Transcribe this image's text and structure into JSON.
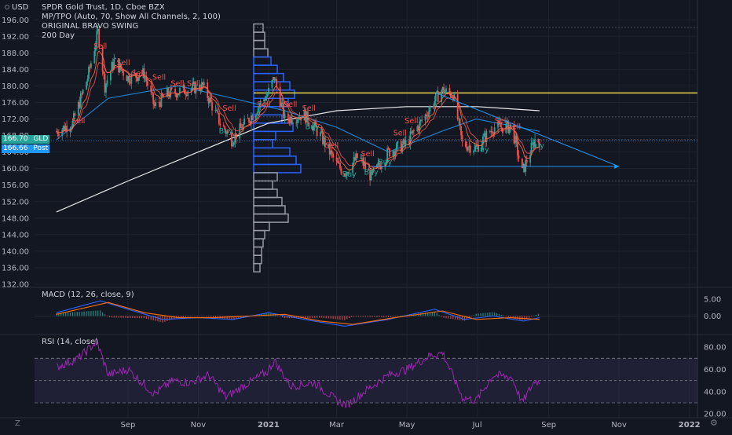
{
  "chart_header": {
    "title": "SPDR Gold Trust, 1D, Cboe BZX",
    "indicator_1": "MP/TPO (Auto, 70, Show All Channels, 2, 100)",
    "indicator_2": "ORIGINAL BRAVO SWING",
    "indicator_3": "200 Day"
  },
  "currency_label": "USD",
  "price_tags": [
    {
      "value": "166.70",
      "label": "GLD"
    },
    {
      "value": "166.66",
      "label": "Post"
    }
  ],
  "macd_label": "MACD (12, 26, close, 9)",
  "rsi_label": "RSI (14, close)",
  "timezone_button": "Z",
  "chart_data": [
    {
      "type": "candlestick",
      "title": "SPDR Gold Trust, 1D, Cboe BZX",
      "ylim": [
        132,
        197
      ],
      "y_ticks": [
        "196.00",
        "192.00",
        "188.00",
        "184.00",
        "180.00",
        "176.00",
        "172.00",
        "168.00",
        "164.00",
        "160.00",
        "156.00",
        "152.00",
        "148.00",
        "144.00",
        "140.00",
        "136.00",
        "132.00"
      ],
      "x_ticks": [
        "Sep",
        "Nov",
        "2021",
        "Mar",
        "May",
        "Jul",
        "Sep",
        "Nov",
        "2022"
      ],
      "price_path": [
        [
          "2020-07-01",
          169
        ],
        [
          "2020-07-15",
          171
        ],
        [
          "2020-07-28",
          182
        ],
        [
          "2020-08-06",
          193
        ],
        [
          "2020-08-12",
          180
        ],
        [
          "2020-08-20",
          186
        ],
        [
          "2020-09-01",
          182
        ],
        [
          "2020-09-15",
          183
        ],
        [
          "2020-09-24",
          175
        ],
        [
          "2020-10-05",
          178
        ],
        [
          "2020-10-20",
          179
        ],
        [
          "2020-11-05",
          180
        ],
        [
          "2020-11-20",
          171
        ],
        [
          "2020-11-30",
          167
        ],
        [
          "2020-12-15",
          172
        ],
        [
          "2020-12-31",
          178
        ],
        [
          "2021-01-06",
          182
        ],
        [
          "2021-01-15",
          172
        ],
        [
          "2021-02-01",
          173
        ],
        [
          "2021-02-15",
          168
        ],
        [
          "2021-03-01",
          161
        ],
        [
          "2021-03-08",
          159
        ],
        [
          "2021-03-20",
          163
        ],
        [
          "2021-03-31",
          158
        ],
        [
          "2021-04-15",
          164
        ],
        [
          "2021-04-30",
          166
        ],
        [
          "2021-05-15",
          172
        ],
        [
          "2021-05-31",
          179
        ],
        [
          "2021-06-10",
          178
        ],
        [
          "2021-06-18",
          166
        ],
        [
          "2021-06-30",
          165
        ],
        [
          "2021-07-15",
          170
        ],
        [
          "2021-07-31",
          170
        ],
        [
          "2021-08-09",
          159
        ],
        [
          "2021-08-20",
          167
        ],
        [
          "2021-08-24",
          166.7
        ]
      ],
      "signals": [
        {
          "label": "Sell",
          "date": "2020-07-20",
          "price": 171
        },
        {
          "label": "Sell",
          "date": "2020-08-08",
          "price": 189
        },
        {
          "label": "Sell",
          "date": "2020-08-28",
          "price": 185
        },
        {
          "label": "Sell",
          "date": "2020-09-10",
          "price": 182.5
        },
        {
          "label": "Sell",
          "date": "2020-09-28",
          "price": 181.5
        },
        {
          "label": "Sell",
          "date": "2020-10-14",
          "price": 180
        },
        {
          "label": "Sell",
          "date": "2020-10-28",
          "price": 180
        },
        {
          "label": "Sell",
          "date": "2020-11-28",
          "price": 174
        },
        {
          "label": "Buy",
          "date": "2020-11-25",
          "price": 168.5
        },
        {
          "label": "Sell",
          "date": "2020-12-28",
          "price": 175
        },
        {
          "label": "Sell",
          "date": "2021-01-20",
          "price": 175
        },
        {
          "label": "Sell",
          "date": "2021-02-05",
          "price": 174
        },
        {
          "label": "Buy",
          "date": "2021-02-08",
          "price": 169.5
        },
        {
          "label": "Sell",
          "date": "2021-02-25",
          "price": 165
        },
        {
          "label": "Buy",
          "date": "2021-03-12",
          "price": 158
        },
        {
          "label": "Sell",
          "date": "2021-03-28",
          "price": 163
        },
        {
          "label": "Buy",
          "date": "2021-03-31",
          "price": 158.5
        },
        {
          "label": "Buy",
          "date": "2021-04-12",
          "price": 161
        },
        {
          "label": "Sell",
          "date": "2021-04-25",
          "price": 168
        },
        {
          "label": "Sell",
          "date": "2021-05-05",
          "price": 171
        },
        {
          "label": "Buy",
          "date": "2021-07-05",
          "price": 164
        },
        {
          "label": "Sell",
          "date": "2021-07-22",
          "price": 171
        },
        {
          "label": "Sell",
          "date": "2021-08-02",
          "price": 169.5
        },
        {
          "label": "Buy",
          "date": "2021-08-22",
          "price": 165
        }
      ],
      "horizontal_line": {
        "price": 178.3,
        "color": "#e8d44d"
      },
      "trendlines": [
        {
          "from": [
            "2021-05-26",
            178.3
          ],
          "to": [
            "2021-11-01",
            160.5
          ]
        },
        {
          "from": [
            "2021-03-31",
            160.5
          ],
          "to": [
            "2021-11-01",
            160.5
          ]
        }
      ],
      "volume_profile": {
        "prices": [
          194,
          192,
          190,
          188,
          186,
          184,
          182,
          180,
          178,
          176,
          174,
          172,
          170,
          168,
          166,
          164,
          162,
          160,
          158,
          156,
          154,
          152,
          150,
          148,
          146,
          144,
          142,
          140,
          138,
          136
        ],
        "volumes": [
          12,
          14,
          14,
          18,
          22,
          30,
          38,
          46,
          52,
          44,
          38,
          36,
          50,
          28,
          24,
          46,
          54,
          60,
          30,
          24,
          30,
          36,
          40,
          44,
          20,
          14,
          12,
          10,
          10,
          8
        ],
        "highlighted_range": [
          160,
          186
        ],
        "colors": {
          "normal": "#9598a1",
          "highlight": "#2962ff"
        }
      },
      "moving_averages": [
        {
          "color": "#ffffff",
          "points": [
            [
              "2020-07-01",
              149.5
            ],
            [
              "2020-09-01",
              157
            ],
            [
              "2020-11-01",
              164
            ],
            [
              "2021-01-01",
              171
            ],
            [
              "2021-03-01",
              174
            ],
            [
              "2021-05-01",
              175
            ],
            [
              "2021-07-01",
              175
            ],
            [
              "2021-08-24",
              174
            ]
          ]
        },
        {
          "color": "#2196f3",
          "points": [
            [
              "2020-07-01",
              167
            ],
            [
              "2020-08-15",
              177
            ],
            [
              "2020-10-15",
              180
            ],
            [
              "2020-12-01",
              177
            ],
            [
              "2021-01-15",
              174
            ],
            [
              "2021-03-01",
              170
            ],
            [
              "2021-04-15",
              164
            ],
            [
              "2021-05-31",
              169
            ],
            [
              "2021-06-30",
              172
            ],
            [
              "2021-08-24",
              169
            ]
          ]
        }
      ]
    },
    {
      "type": "line",
      "title": "MACD (12, 26, close, 9)",
      "y_ticks": [
        "5.00",
        "0.00"
      ],
      "ylim": [
        -5,
        8
      ],
      "series": [
        {
          "color": "#2962ff",
          "points": [
            [
              "2020-07-01",
              1
            ],
            [
              "2020-08-08",
              4.5
            ],
            [
              "2020-09-01",
              2
            ],
            [
              "2020-10-01",
              -1
            ],
            [
              "2020-11-01",
              -0.5
            ],
            [
              "2020-12-01",
              -1
            ],
            [
              "2021-01-01",
              1
            ],
            [
              "2021-02-01",
              -1
            ],
            [
              "2021-03-08",
              -3
            ],
            [
              "2021-04-15",
              -1
            ],
            [
              "2021-05-25",
              2
            ],
            [
              "2021-06-20",
              -1
            ],
            [
              "2021-07-15",
              0
            ],
            [
              "2021-08-10",
              -1.5
            ],
            [
              "2021-08-24",
              -0.5
            ]
          ]
        },
        {
          "color": "#ff6d00",
          "points": [
            [
              "2020-07-01",
              0.5
            ],
            [
              "2020-08-15",
              4
            ],
            [
              "2020-09-15",
              1
            ],
            [
              "2020-10-15",
              -0.5
            ],
            [
              "2020-11-15",
              -0.5
            ],
            [
              "2020-12-15",
              0
            ],
            [
              "2021-01-15",
              0.5
            ],
            [
              "2021-02-15",
              -1.5
            ],
            [
              "2021-03-15",
              -2.5
            ],
            [
              "2021-04-20",
              -0.5
            ],
            [
              "2021-06-01",
              1.5
            ],
            [
              "2021-06-30",
              -1
            ],
            [
              "2021-07-30",
              -0.5
            ],
            [
              "2021-08-24",
              -1
            ]
          ]
        }
      ]
    },
    {
      "type": "line",
      "title": "RSI (14, close)",
      "y_ticks": [
        "80.00",
        "60.00",
        "40.00",
        "20.00"
      ],
      "ylim": [
        18,
        90
      ],
      "bands": [
        70,
        50,
        30
      ],
      "series": [
        {
          "color": "#9c27b0",
          "points": [
            [
              "2020-07-01",
              62
            ],
            [
              "2020-07-20",
              70
            ],
            [
              "2020-08-05",
              85
            ],
            [
              "2020-08-15",
              55
            ],
            [
              "2020-09-01",
              60
            ],
            [
              "2020-09-24",
              38
            ],
            [
              "2020-10-10",
              50
            ],
            [
              "2020-10-25",
              48
            ],
            [
              "2020-11-10",
              55
            ],
            [
              "2020-11-25",
              35
            ],
            [
              "2020-12-10",
              45
            ],
            [
              "2020-12-31",
              58
            ],
            [
              "2021-01-06",
              68
            ],
            [
              "2021-01-20",
              45
            ],
            [
              "2021-02-10",
              48
            ],
            [
              "2021-03-01",
              32
            ],
            [
              "2021-03-10",
              28
            ],
            [
              "2021-03-25",
              40
            ],
            [
              "2021-04-15",
              55
            ],
            [
              "2021-05-01",
              60
            ],
            [
              "2021-05-20",
              72
            ],
            [
              "2021-06-01",
              75
            ],
            [
              "2021-06-18",
              35
            ],
            [
              "2021-06-30",
              32
            ],
            [
              "2021-07-15",
              55
            ],
            [
              "2021-07-31",
              53
            ],
            [
              "2021-08-09",
              30
            ],
            [
              "2021-08-20",
              50
            ],
            [
              "2021-08-24",
              48
            ]
          ]
        }
      ]
    }
  ]
}
